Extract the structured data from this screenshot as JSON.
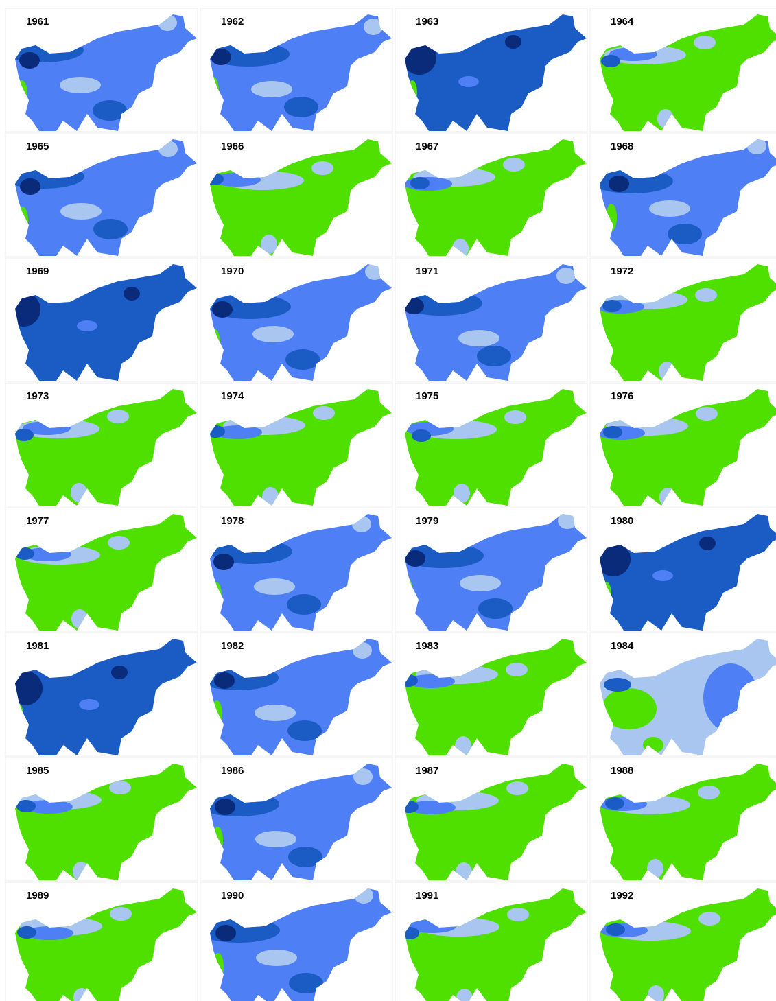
{
  "maps": [
    {
      "year": "1961"
    },
    {
      "year": "1962"
    },
    {
      "year": "1963"
    },
    {
      "year": "1964"
    },
    {
      "year": "1965"
    },
    {
      "year": "1966"
    },
    {
      "year": "1967"
    },
    {
      "year": "1968"
    },
    {
      "year": "1969"
    },
    {
      "year": "1970"
    },
    {
      "year": "1971"
    },
    {
      "year": "1972"
    },
    {
      "year": "1973"
    },
    {
      "year": "1974"
    },
    {
      "year": "1975"
    },
    {
      "year": "1976"
    },
    {
      "year": "1977"
    },
    {
      "year": "1978"
    },
    {
      "year": "1979"
    },
    {
      "year": "1980"
    },
    {
      "year": "1981"
    },
    {
      "year": "1982"
    },
    {
      "year": "1983"
    },
    {
      "year": "1984"
    },
    {
      "year": "1985"
    },
    {
      "year": "1986"
    },
    {
      "year": "1987"
    },
    {
      "year": "1988"
    },
    {
      "year": "1989"
    },
    {
      "year": "1990"
    },
    {
      "year": "1991"
    },
    {
      "year": "1992"
    }
  ]
}
